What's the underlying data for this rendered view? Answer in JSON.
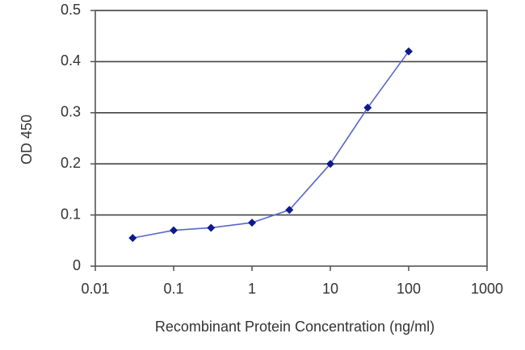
{
  "chart_data": {
    "type": "line",
    "title": "",
    "xlabel": "Recombinant Protein Concentration (ng/ml)",
    "ylabel": "OD 450",
    "x_scale": "log",
    "xlim": [
      0.01,
      1000
    ],
    "ylim": [
      0,
      0.5
    ],
    "x_ticks": [
      "0.01",
      "0.1",
      "1",
      "10",
      "100",
      "1000"
    ],
    "y_ticks": [
      "0",
      "0.1",
      "0.2",
      "0.3",
      "0.4",
      "0.5"
    ],
    "grid": "horizontal",
    "legend": "none",
    "series": [
      {
        "x": [
          0.03,
          0.1,
          0.3,
          1,
          3,
          10,
          30,
          100
        ],
        "y": [
          0.055,
          0.07,
          0.075,
          0.085,
          0.11,
          0.2,
          0.31,
          0.42
        ],
        "color": "#0b1a8c",
        "line_color": "#5a67c8"
      }
    ]
  }
}
